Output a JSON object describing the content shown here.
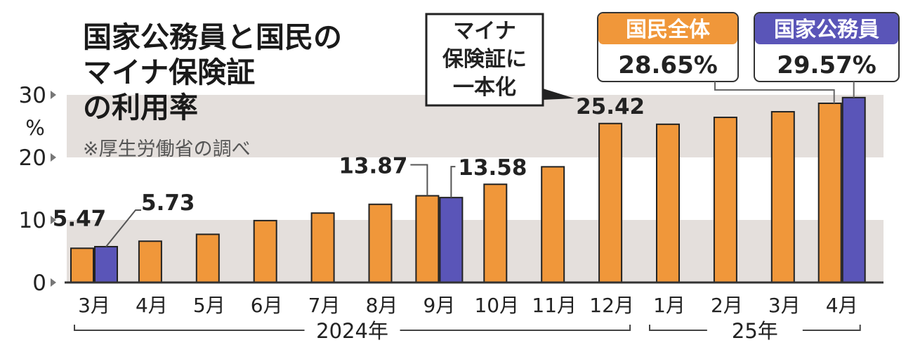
{
  "chart_data": {
    "type": "bar",
    "title": [
      "国家公務員と国民の",
      "マイナ保険証",
      "の利用率"
    ],
    "source_note": "※厚生労働省の調べ",
    "y_unit": "%",
    "ylim": [
      0,
      30
    ],
    "yticks": [
      "0",
      "10",
      "20",
      "30"
    ],
    "categories": [
      "3月",
      "4月",
      "5月",
      "6月",
      "7月",
      "8月",
      "9月",
      "10月",
      "11月",
      "12月",
      "1月",
      "2月",
      "3月",
      "4月"
    ],
    "year_groups": [
      {
        "label": "2024年",
        "span": [
          0,
          9
        ]
      },
      {
        "label": "25年",
        "span": [
          10,
          13
        ]
      }
    ],
    "series": [
      {
        "name": "国民全体",
        "color": "#f0973a",
        "values": [
          5.47,
          6.6,
          7.7,
          9.9,
          11.1,
          12.5,
          13.87,
          15.7,
          18.5,
          25.42,
          25.3,
          26.4,
          27.3,
          28.65
        ]
      },
      {
        "name": "国家公務員",
        "color": "#5a55b8",
        "values": [
          5.73,
          null,
          null,
          null,
          null,
          null,
          13.58,
          null,
          null,
          null,
          null,
          null,
          null,
          29.57
        ]
      }
    ],
    "data_labels": [
      {
        "series": 0,
        "index": 0,
        "text": "5.47"
      },
      {
        "series": 1,
        "index": 0,
        "text": "5.73"
      },
      {
        "series": 0,
        "index": 6,
        "text": "13.87"
      },
      {
        "series": 1,
        "index": 6,
        "text": "13.58"
      },
      {
        "series": 0,
        "index": 9,
        "text": "25.42"
      }
    ],
    "legend_boxes": [
      {
        "series": 0,
        "name": "国民全体",
        "value": "28.65%"
      },
      {
        "series": 1,
        "name": "国家公務員",
        "value": "29.57%"
      }
    ],
    "annotation": [
      "マイナ",
      "保険証に",
      "一本化"
    ],
    "band_color": "#e4dfdc"
  }
}
